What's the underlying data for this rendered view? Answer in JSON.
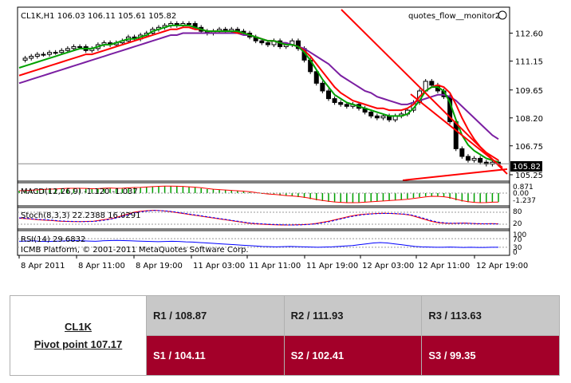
{
  "chart_data": {
    "type": "candlestick",
    "instrument_header": "CL1K,H1  106.03 106.11 105.61 105.82",
    "indicator_name": "quotes_flow__monitor2",
    "price_ticks": [
      "112.60",
      "111.15",
      "109.65",
      "108.20",
      "106.75",
      "105.25"
    ],
    "last_price": "105.82",
    "x_ticks": [
      "8 Apr 2011",
      "8 Apr 11:00",
      "8 Apr 19:00",
      "11 Apr 03:00",
      "11 Apr 11:00",
      "11 Apr 19:00",
      "12 Apr 03:00",
      "12 Apr 11:00",
      "12 Apr 19:00"
    ],
    "close_series": [
      111.2,
      111.3,
      111.4,
      111.5,
      111.5,
      111.6,
      111.6,
      111.7,
      111.8,
      111.9,
      111.9,
      111.7,
      111.8,
      112.0,
      112.1,
      112.0,
      112.1,
      112.2,
      112.4,
      112.3,
      112.5,
      112.6,
      112.8,
      112.9,
      113.0,
      113.1,
      113.0,
      113.1,
      113.1,
      112.9,
      112.7,
      112.6,
      112.7,
      112.8,
      112.7,
      112.8,
      112.7,
      112.6,
      112.4,
      112.2,
      112.1,
      112.0,
      112.2,
      111.9,
      112.0,
      112.2,
      111.8,
      111.2,
      110.6,
      110.0,
      109.6,
      109.2,
      109.0,
      108.9,
      108.8,
      108.9,
      108.7,
      108.5,
      108.3,
      108.2,
      108.3,
      108.1,
      108.3,
      108.4,
      108.6,
      109.0,
      109.6,
      110.1,
      109.9,
      109.6,
      109.3,
      108.0,
      106.6,
      106.2,
      106.0,
      106.1,
      105.9,
      105.8,
      105.9,
      105.8
    ],
    "ema_fast": [
      110.8,
      110.9,
      111.0,
      111.1,
      111.2,
      111.3,
      111.4,
      111.5,
      111.6,
      111.7,
      111.8,
      111.8,
      111.8,
      111.9,
      112.0,
      112.0,
      112.1,
      112.2,
      112.3,
      112.3,
      112.4,
      112.5,
      112.7,
      112.8,
      112.9,
      113.0,
      113.0,
      113.0,
      113.0,
      112.9,
      112.8,
      112.7,
      112.7,
      112.7,
      112.7,
      112.7,
      112.7,
      112.6,
      112.5,
      112.4,
      112.3,
      112.2,
      112.2,
      112.1,
      112.0,
      112.0,
      111.9,
      111.6,
      111.2,
      110.7,
      110.2,
      109.8,
      109.4,
      109.2,
      109.0,
      108.9,
      108.8,
      108.7,
      108.6,
      108.5,
      108.4,
      108.3,
      108.3,
      108.3,
      108.4,
      108.7,
      109.1,
      109.6,
      109.8,
      109.8,
      109.6,
      109.0,
      108.1,
      107.3,
      106.8,
      106.5,
      106.3,
      106.1,
      106.0,
      105.9
    ],
    "ema_mid": [
      110.4,
      110.5,
      110.6,
      110.7,
      110.8,
      110.9,
      111.0,
      111.1,
      111.2,
      111.3,
      111.4,
      111.5,
      111.5,
      111.6,
      111.7,
      111.8,
      111.9,
      112.0,
      112.1,
      112.2,
      112.3,
      112.4,
      112.5,
      112.6,
      112.7,
      112.8,
      112.8,
      112.9,
      112.9,
      112.8,
      112.8,
      112.7,
      112.7,
      112.7,
      112.7,
      112.7,
      112.6,
      112.6,
      112.5,
      112.4,
      112.3,
      112.2,
      112.2,
      112.1,
      112.0,
      112.0,
      111.9,
      111.7,
      111.4,
      111.0,
      110.6,
      110.2,
      109.8,
      109.5,
      109.3,
      109.1,
      109.0,
      108.9,
      108.8,
      108.7,
      108.7,
      108.6,
      108.6,
      108.6,
      108.7,
      108.9,
      109.3,
      109.6,
      109.8,
      109.9,
      109.8,
      109.5,
      108.9,
      108.2,
      107.6,
      107.1,
      106.7,
      106.4,
      106.2,
      106.0
    ],
    "ema_slow": [
      110.0,
      110.1,
      110.2,
      110.3,
      110.4,
      110.5,
      110.6,
      110.7,
      110.8,
      110.9,
      111.0,
      111.1,
      111.2,
      111.3,
      111.4,
      111.5,
      111.6,
      111.7,
      111.8,
      111.9,
      112.0,
      112.1,
      112.2,
      112.3,
      112.4,
      112.5,
      112.5,
      112.6,
      112.6,
      112.6,
      112.6,
      112.6,
      112.6,
      112.6,
      112.6,
      112.6,
      112.6,
      112.5,
      112.5,
      112.4,
      112.3,
      112.2,
      112.2,
      112.1,
      112.1,
      112.0,
      111.9,
      111.8,
      111.6,
      111.4,
      111.2,
      111.0,
      110.7,
      110.4,
      110.2,
      110.0,
      109.8,
      109.6,
      109.5,
      109.3,
      109.2,
      109.1,
      109.0,
      108.9,
      108.9,
      109.0,
      109.1,
      109.2,
      109.3,
      109.4,
      109.4,
      109.3,
      109.1,
      108.8,
      108.5,
      108.2,
      107.9,
      107.6,
      107.3,
      107.1
    ],
    "ylim": [
      105.0,
      113.7
    ],
    "macd": {
      "label": "MACD(12,26,9) -1.120 -1.037",
      "ticks": [
        "0.871",
        "0.00",
        "-1.237"
      ],
      "values": [
        0.3,
        0.35,
        0.4,
        0.45,
        0.5,
        0.5,
        0.55,
        0.6,
        0.6,
        0.6,
        0.6,
        0.55,
        0.55,
        0.6,
        0.65,
        0.6,
        0.6,
        0.65,
        0.7,
        0.7,
        0.75,
        0.8,
        0.85,
        0.87,
        0.87,
        0.87,
        0.85,
        0.8,
        0.75,
        0.7,
        0.6,
        0.5,
        0.45,
        0.4,
        0.35,
        0.3,
        0.25,
        0.2,
        0.1,
        0.0,
        -0.1,
        -0.15,
        -0.2,
        -0.3,
        -0.35,
        -0.4,
        -0.5,
        -0.6,
        -0.75,
        -0.9,
        -1.0,
        -1.1,
        -1.15,
        -1.2,
        -1.2,
        -1.2,
        -1.15,
        -1.1,
        -1.05,
        -1.0,
        -0.95,
        -0.9,
        -0.85,
        -0.8,
        -0.7,
        -0.6,
        -0.5,
        -0.4,
        -0.4,
        -0.45,
        -0.5,
        -0.7,
        -0.9,
        -1.05,
        -1.15,
        -1.2,
        -1.2,
        -1.15,
        -1.12,
        -1.12
      ]
    },
    "stoch": {
      "label": "Stoch(8,3,3) 22.2388 16.0291",
      "ticks": [
        "80",
        "20"
      ],
      "main": [
        50,
        48,
        45,
        42,
        40,
        38,
        35,
        34,
        33,
        33,
        34,
        35,
        40,
        45,
        50,
        60,
        70,
        80,
        85,
        88,
        90,
        88,
        85,
        80,
        75,
        70,
        65,
        60,
        55,
        50,
        45,
        40,
        35,
        30,
        25,
        22,
        20,
        18,
        17,
        16,
        16,
        17,
        18,
        20,
        24,
        30,
        36,
        44,
        52,
        60,
        66,
        70,
        72,
        74,
        75,
        74,
        72,
        70,
        65,
        55,
        45,
        35,
        28,
        25,
        24,
        25,
        26,
        24,
        22,
        22,
        23,
        22
      ],
      "signal": [
        52,
        50,
        47,
        44,
        42,
        40,
        37,
        35,
        34,
        33,
        33,
        34,
        37,
        42,
        48,
        56,
        66,
        76,
        82,
        86,
        89,
        88,
        86,
        82,
        77,
        72,
        67,
        62,
        57,
        52,
        47,
        42,
        37,
        32,
        27,
        24,
        22,
        20,
        18,
        17,
        16,
        16,
        17,
        19,
        22,
        27,
        33,
        41,
        49,
        57,
        63,
        68,
        71,
        73,
        74,
        74,
        73,
        71,
        67,
        59,
        49,
        39,
        31,
        27,
        25,
        25,
        25,
        24,
        23,
        22,
        22,
        21
      ]
    },
    "rsi": {
      "label": "RSI(14) 29.6832",
      "ticks": [
        "100",
        "70",
        "30",
        "0"
      ],
      "values": [
        58,
        59,
        60,
        58,
        57,
        58,
        59,
        60,
        61,
        60,
        59,
        58,
        60,
        61,
        62,
        61,
        60,
        59,
        58,
        57,
        56,
        57,
        58,
        57,
        55,
        54,
        52,
        50,
        48,
        46,
        44,
        42,
        40,
        38,
        36,
        34,
        33,
        32,
        33,
        34,
        33,
        32,
        31,
        30,
        31,
        32,
        34,
        36,
        38,
        42,
        46,
        50,
        52,
        50,
        46,
        42,
        38,
        34,
        32,
        31,
        30,
        30,
        31,
        30,
        29,
        30,
        29,
        29,
        30,
        30
      ]
    },
    "copyright": "ICMB Platform, © 2001-2011 MetaQuotes Software Corp."
  },
  "pivot": {
    "instrument": "CL1K",
    "pivot_label": "Pivot point 107.17",
    "resistance": [
      "R1 / 108.87",
      "R2  / 111.93",
      "R3 / 113.63"
    ],
    "support": [
      "S1 / 104.11",
      "S2 /  102.41",
      "S3 /  99.35"
    ],
    "colors": {
      "resistance_bg": "#c8c8c8",
      "support_bg": "#a30029",
      "support_text": "#ffffff"
    }
  }
}
